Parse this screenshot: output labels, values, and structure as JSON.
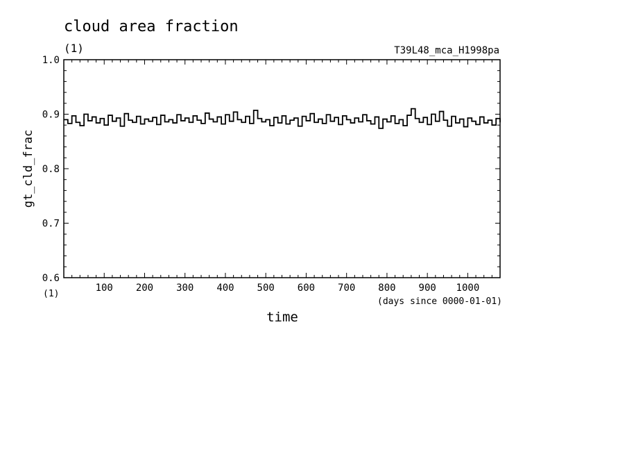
{
  "chart_data": {
    "type": "line",
    "title": "cloud area fraction",
    "units": "(1)",
    "run_label": "T39L48_mca_H1998pa",
    "ylabel": "gt_cld_frac",
    "y_units": "(1)",
    "xlabel": "time",
    "x_units": "(days since 0000-01-01)",
    "xlim": [
      0,
      1080
    ],
    "ylim": [
      0.6,
      1.0
    ],
    "x_ticks": [
      100,
      200,
      300,
      400,
      500,
      600,
      700,
      800,
      900,
      1000
    ],
    "x_tick_labels": [
      "100",
      "200",
      "300",
      "400",
      "500",
      "600",
      "700",
      "800",
      "900",
      "1000"
    ],
    "y_ticks": [
      0.6,
      0.7,
      0.8,
      0.9,
      1.0
    ],
    "y_tick_labels": [
      "0.6",
      "0.7",
      "0.8",
      "0.9",
      "1.0"
    ],
    "line_color": "#000000",
    "series": [
      {
        "x": [
          0,
          10,
          20,
          30,
          40,
          50,
          60,
          70,
          80,
          90,
          100,
          110,
          120,
          130,
          140,
          150,
          160,
          170,
          180,
          190,
          200,
          210,
          220,
          230,
          240,
          250,
          260,
          270,
          280,
          290,
          300,
          310,
          320,
          330,
          340,
          350,
          360,
          370,
          380,
          390,
          400,
          410,
          420,
          430,
          440,
          450,
          460,
          470,
          480,
          490,
          500,
          510,
          520,
          530,
          540,
          550,
          560,
          570,
          580,
          590,
          600,
          610,
          620,
          630,
          640,
          650,
          660,
          670,
          680,
          690,
          700,
          710,
          720,
          730,
          740,
          750,
          760,
          770,
          780,
          790,
          800,
          810,
          820,
          830,
          840,
          850,
          860,
          870,
          880,
          890,
          900,
          910,
          920,
          930,
          940,
          950,
          960,
          970,
          980,
          990,
          1000,
          1010,
          1020,
          1030,
          1040,
          1050,
          1060,
          1070,
          1080
        ],
        "values": [
          0.89,
          0.883,
          0.897,
          0.885,
          0.879,
          0.9,
          0.888,
          0.895,
          0.884,
          0.892,
          0.88,
          0.898,
          0.887,
          0.893,
          0.878,
          0.901,
          0.889,
          0.885,
          0.896,
          0.882,
          0.891,
          0.887,
          0.894,
          0.881,
          0.898,
          0.886,
          0.89,
          0.884,
          0.899,
          0.888,
          0.893,
          0.885,
          0.897,
          0.889,
          0.883,
          0.902,
          0.891,
          0.886,
          0.895,
          0.882,
          0.899,
          0.887,
          0.904,
          0.89,
          0.885,
          0.896,
          0.883,
          0.907,
          0.892,
          0.886,
          0.89,
          0.879,
          0.894,
          0.884,
          0.897,
          0.882,
          0.889,
          0.893,
          0.878,
          0.896,
          0.888,
          0.901,
          0.885,
          0.891,
          0.883,
          0.899,
          0.887,
          0.894,
          0.881,
          0.897,
          0.89,
          0.884,
          0.893,
          0.886,
          0.899,
          0.888,
          0.882,
          0.895,
          0.874,
          0.891,
          0.886,
          0.897,
          0.883,
          0.89,
          0.879,
          0.898,
          0.91,
          0.892,
          0.885,
          0.894,
          0.881,
          0.9,
          0.887,
          0.905,
          0.889,
          0.878,
          0.896,
          0.884,
          0.891,
          0.877,
          0.893,
          0.887,
          0.881,
          0.895,
          0.884,
          0.889,
          0.88,
          0.892,
          0.885
        ]
      }
    ]
  }
}
